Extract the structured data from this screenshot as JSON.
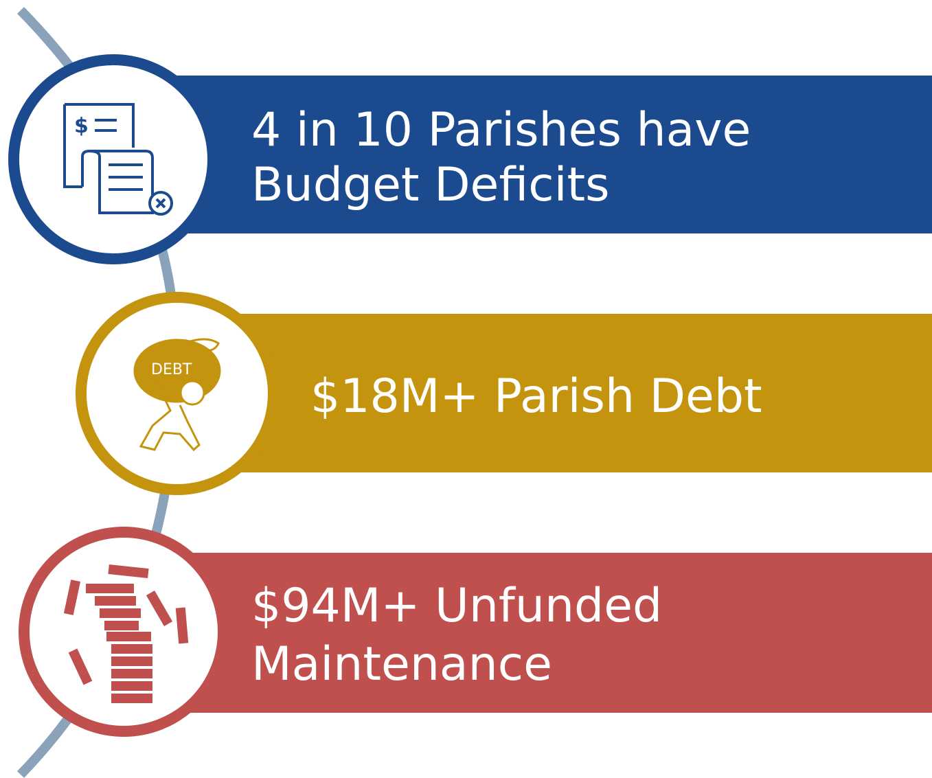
{
  "items": [
    {
      "lines": [
        "4 in 10 Parishes have",
        "Budget Deficits"
      ]
    },
    {
      "lines": [
        "$18M+ Parish Debt"
      ],
      "icon_label": "DEBT"
    },
    {
      "lines": [
        "$94M+ Unfunded",
        "Maintenance"
      ]
    }
  ]
}
